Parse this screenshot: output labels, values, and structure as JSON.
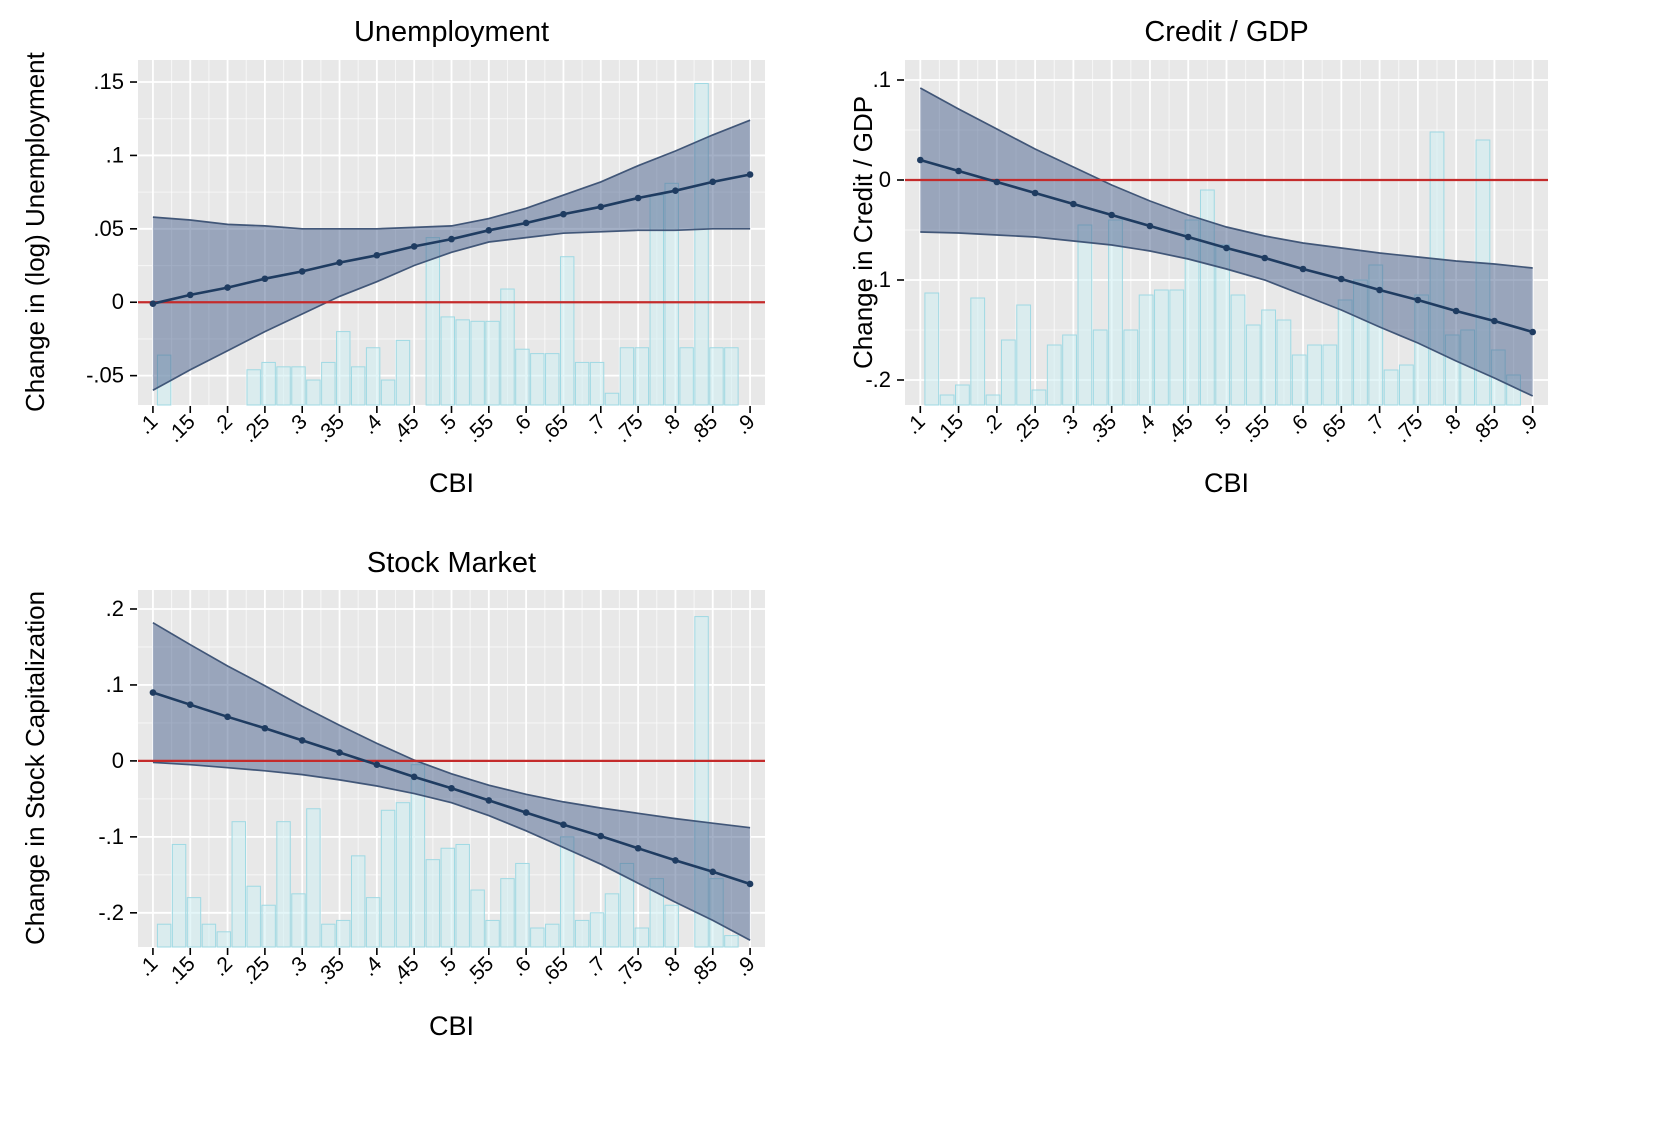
{
  "page": {
    "background": "#ffffff"
  },
  "colors": {
    "panel": "#e8e8e8",
    "grid_major": "#ffffff",
    "grid_minor": "#ffffff",
    "band_fill": "#4a628e",
    "band_edge": "#3a5073",
    "line": "#1f3c61",
    "ref_line": "#c42b2b",
    "hist_fill": "#cdeef2",
    "hist_edge": "#9fd9e3",
    "tick": "#000000",
    "text": "#000000"
  },
  "chart_data": [
    {
      "type": "line",
      "title": "Unemployment",
      "xlabel": "CBI",
      "ylabel": "Change in (log) Unemployment",
      "legend": "none",
      "grid": true,
      "x": [
        0.1,
        0.15,
        0.2,
        0.25,
        0.3,
        0.35,
        0.4,
        0.45,
        0.5,
        0.55,
        0.6,
        0.65,
        0.7,
        0.75,
        0.8,
        0.85,
        0.9
      ],
      "series": [
        {
          "name": "marginal-effect",
          "values": [
            -0.001,
            0.005,
            0.01,
            0.016,
            0.021,
            0.027,
            0.032,
            0.038,
            0.043,
            0.049,
            0.054,
            0.06,
            0.065,
            0.071,
            0.076,
            0.082,
            0.087
          ]
        },
        {
          "name": "ci-upper",
          "values": [
            0.058,
            0.056,
            0.053,
            0.052,
            0.05,
            0.05,
            0.05,
            0.051,
            0.052,
            0.057,
            0.064,
            0.073,
            0.082,
            0.093,
            0.103,
            0.114,
            0.124
          ]
        },
        {
          "name": "ci-lower",
          "values": [
            -0.06,
            -0.046,
            -0.033,
            -0.02,
            -0.008,
            0.004,
            0.014,
            0.025,
            0.034,
            0.041,
            0.044,
            0.047,
            0.048,
            0.049,
            0.049,
            0.05,
            0.05
          ]
        }
      ],
      "ref_line_y": 0,
      "xlim": [
        0.08,
        0.92
      ],
      "ylim": [
        -0.07,
        0.165
      ],
      "x_ticks": [
        0.1,
        0.15,
        0.2,
        0.25,
        0.3,
        0.35,
        0.4,
        0.45,
        0.5,
        0.55,
        0.6,
        0.65,
        0.7,
        0.75,
        0.8,
        0.85,
        0.9
      ],
      "x_tick_labels": [
        ".1",
        ".15",
        ".2",
        ".25",
        ".3",
        ".35",
        ".4",
        ".45",
        ".5",
        ".55",
        ".6",
        ".65",
        ".7",
        ".75",
        ".8",
        ".85",
        ".9"
      ],
      "y_ticks": [
        -0.05,
        0,
        0.05,
        0.1,
        0.15
      ],
      "y_tick_labels": [
        "-.05",
        "0",
        ".05",
        ".1",
        ".15"
      ],
      "histogram": {
        "bar_width": 0.018,
        "base": -0.07,
        "bars": [
          [
            0.115,
            -0.036
          ],
          [
            0.235,
            -0.046
          ],
          [
            0.255,
            -0.041
          ],
          [
            0.275,
            -0.044
          ],
          [
            0.295,
            -0.044
          ],
          [
            0.315,
            -0.053
          ],
          [
            0.335,
            -0.041
          ],
          [
            0.355,
            -0.02
          ],
          [
            0.375,
            -0.044
          ],
          [
            0.395,
            -0.031
          ],
          [
            0.415,
            -0.053
          ],
          [
            0.435,
            -0.026
          ],
          [
            0.475,
            0.044
          ],
          [
            0.495,
            -0.01
          ],
          [
            0.515,
            -0.012
          ],
          [
            0.535,
            -0.013
          ],
          [
            0.555,
            -0.013
          ],
          [
            0.575,
            0.009
          ],
          [
            0.595,
            -0.032
          ],
          [
            0.615,
            -0.035
          ],
          [
            0.635,
            -0.035
          ],
          [
            0.655,
            0.031
          ],
          [
            0.675,
            -0.041
          ],
          [
            0.695,
            -0.041
          ],
          [
            0.715,
            -0.062
          ],
          [
            0.735,
            -0.031
          ],
          [
            0.755,
            -0.031
          ],
          [
            0.775,
            0.073
          ],
          [
            0.795,
            0.081
          ],
          [
            0.815,
            -0.031
          ],
          [
            0.835,
            0.149
          ],
          [
            0.855,
            -0.031
          ],
          [
            0.875,
            -0.031
          ]
        ]
      }
    },
    {
      "type": "line",
      "title": "Credit / GDP",
      "xlabel": "CBI",
      "ylabel": "Change in Credit / GDP",
      "legend": "none",
      "grid": true,
      "x": [
        0.1,
        0.15,
        0.2,
        0.25,
        0.3,
        0.35,
        0.4,
        0.45,
        0.5,
        0.55,
        0.6,
        0.65,
        0.7,
        0.75,
        0.8,
        0.85,
        0.9
      ],
      "series": [
        {
          "name": "marginal-effect",
          "values": [
            0.02,
            0.009,
            -0.002,
            -0.013,
            -0.024,
            -0.035,
            -0.046,
            -0.057,
            -0.068,
            -0.078,
            -0.089,
            -0.099,
            -0.11,
            -0.12,
            -0.131,
            -0.141,
            -0.152
          ]
        },
        {
          "name": "ci-upper",
          "values": [
            0.092,
            0.071,
            0.051,
            0.031,
            0.013,
            -0.005,
            -0.021,
            -0.035,
            -0.047,
            -0.056,
            -0.063,
            -0.068,
            -0.073,
            -0.077,
            -0.081,
            -0.084,
            -0.088
          ]
        },
        {
          "name": "ci-lower",
          "values": [
            -0.052,
            -0.053,
            -0.055,
            -0.057,
            -0.061,
            -0.065,
            -0.071,
            -0.079,
            -0.089,
            -0.1,
            -0.115,
            -0.13,
            -0.147,
            -0.163,
            -0.181,
            -0.198,
            -0.216
          ]
        }
      ],
      "ref_line_y": 0,
      "xlim": [
        0.08,
        0.92
      ],
      "ylim": [
        -0.225,
        0.12
      ],
      "x_ticks": [
        0.1,
        0.15,
        0.2,
        0.25,
        0.3,
        0.35,
        0.4,
        0.45,
        0.5,
        0.55,
        0.6,
        0.65,
        0.7,
        0.75,
        0.8,
        0.85,
        0.9
      ],
      "x_tick_labels": [
        ".1",
        ".15",
        ".2",
        ".25",
        ".3",
        ".35",
        ".4",
        ".45",
        ".5",
        ".55",
        ".6",
        ".65",
        ".7",
        ".75",
        ".8",
        ".85",
        ".9"
      ],
      "y_ticks": [
        -0.2,
        -0.1,
        0,
        0.1
      ],
      "y_tick_labels": [
        "-.2",
        "-.1",
        "0",
        ".1"
      ],
      "histogram": {
        "bar_width": 0.018,
        "base": -0.225,
        "bars": [
          [
            0.115,
            -0.113
          ],
          [
            0.135,
            -0.215
          ],
          [
            0.155,
            -0.205
          ],
          [
            0.175,
            -0.118
          ],
          [
            0.195,
            -0.215
          ],
          [
            0.215,
            -0.16
          ],
          [
            0.235,
            -0.125
          ],
          [
            0.255,
            -0.21
          ],
          [
            0.275,
            -0.165
          ],
          [
            0.295,
            -0.155
          ],
          [
            0.315,
            -0.045
          ],
          [
            0.335,
            -0.15
          ],
          [
            0.355,
            -0.04
          ],
          [
            0.375,
            -0.15
          ],
          [
            0.395,
            -0.115
          ],
          [
            0.415,
            -0.11
          ],
          [
            0.435,
            -0.11
          ],
          [
            0.455,
            -0.04
          ],
          [
            0.475,
            -0.01
          ],
          [
            0.495,
            -0.065
          ],
          [
            0.515,
            -0.115
          ],
          [
            0.535,
            -0.145
          ],
          [
            0.555,
            -0.13
          ],
          [
            0.575,
            -0.14
          ],
          [
            0.595,
            -0.175
          ],
          [
            0.615,
            -0.165
          ],
          [
            0.635,
            -0.165
          ],
          [
            0.655,
            -0.12
          ],
          [
            0.675,
            -0.1
          ],
          [
            0.695,
            -0.085
          ],
          [
            0.715,
            -0.19
          ],
          [
            0.735,
            -0.185
          ],
          [
            0.755,
            -0.115
          ],
          [
            0.775,
            0.048
          ],
          [
            0.795,
            -0.155
          ],
          [
            0.815,
            -0.15
          ],
          [
            0.835,
            0.04
          ],
          [
            0.855,
            -0.17
          ],
          [
            0.875,
            -0.195
          ]
        ]
      }
    },
    {
      "type": "line",
      "title": "Stock Market",
      "xlabel": "CBI",
      "ylabel": "Change in Stock Capitalization",
      "legend": "none",
      "grid": true,
      "x": [
        0.1,
        0.15,
        0.2,
        0.25,
        0.3,
        0.35,
        0.4,
        0.45,
        0.5,
        0.55,
        0.6,
        0.65,
        0.7,
        0.75,
        0.8,
        0.85,
        0.9
      ],
      "series": [
        {
          "name": "marginal-effect",
          "values": [
            0.09,
            0.074,
            0.058,
            0.043,
            0.027,
            0.011,
            -0.005,
            -0.021,
            -0.036,
            -0.052,
            -0.068,
            -0.084,
            -0.099,
            -0.115,
            -0.131,
            -0.146,
            -0.162
          ]
        },
        {
          "name": "ci-upper",
          "values": [
            0.182,
            0.153,
            0.125,
            0.099,
            0.072,
            0.047,
            0.023,
            0.001,
            -0.017,
            -0.032,
            -0.044,
            -0.054,
            -0.062,
            -0.069,
            -0.076,
            -0.082,
            -0.088
          ]
        },
        {
          "name": "ci-lower",
          "values": [
            -0.002,
            -0.005,
            -0.009,
            -0.013,
            -0.018,
            -0.025,
            -0.033,
            -0.043,
            -0.055,
            -0.072,
            -0.092,
            -0.114,
            -0.136,
            -0.161,
            -0.186,
            -0.21,
            -0.236
          ]
        }
      ],
      "ref_line_y": 0,
      "xlim": [
        0.08,
        0.92
      ],
      "ylim": [
        -0.245,
        0.225
      ],
      "x_ticks": [
        0.1,
        0.15,
        0.2,
        0.25,
        0.3,
        0.35,
        0.4,
        0.45,
        0.5,
        0.55,
        0.6,
        0.65,
        0.7,
        0.75,
        0.8,
        0.85,
        0.9
      ],
      "x_tick_labels": [
        ".1",
        ".15",
        ".2",
        ".25",
        ".3",
        ".35",
        ".4",
        ".45",
        ".5",
        ".55",
        ".6",
        ".65",
        ".7",
        ".75",
        ".8",
        ".85",
        ".9"
      ],
      "y_ticks": [
        -0.2,
        -0.1,
        0,
        0.1,
        0.2
      ],
      "y_tick_labels": [
        "-.2",
        "-.1",
        "0",
        ".1",
        ".2"
      ],
      "histogram": {
        "bar_width": 0.018,
        "base": -0.245,
        "bars": [
          [
            0.115,
            -0.215
          ],
          [
            0.135,
            -0.11
          ],
          [
            0.155,
            -0.18
          ],
          [
            0.175,
            -0.215
          ],
          [
            0.195,
            -0.225
          ],
          [
            0.215,
            -0.08
          ],
          [
            0.235,
            -0.165
          ],
          [
            0.255,
            -0.19
          ],
          [
            0.275,
            -0.08
          ],
          [
            0.295,
            -0.175
          ],
          [
            0.315,
            -0.063
          ],
          [
            0.335,
            -0.215
          ],
          [
            0.355,
            -0.21
          ],
          [
            0.375,
            -0.125
          ],
          [
            0.395,
            -0.18
          ],
          [
            0.415,
            -0.065
          ],
          [
            0.435,
            -0.055
          ],
          [
            0.455,
            -0.005
          ],
          [
            0.475,
            -0.13
          ],
          [
            0.495,
            -0.115
          ],
          [
            0.515,
            -0.11
          ],
          [
            0.535,
            -0.17
          ],
          [
            0.555,
            -0.21
          ],
          [
            0.575,
            -0.155
          ],
          [
            0.595,
            -0.135
          ],
          [
            0.615,
            -0.22
          ],
          [
            0.635,
            -0.215
          ],
          [
            0.655,
            -0.1
          ],
          [
            0.675,
            -0.21
          ],
          [
            0.695,
            -0.2
          ],
          [
            0.715,
            -0.175
          ],
          [
            0.735,
            -0.135
          ],
          [
            0.755,
            -0.22
          ],
          [
            0.775,
            -0.155
          ],
          [
            0.795,
            -0.19
          ],
          [
            0.835,
            0.19
          ],
          [
            0.855,
            -0.155
          ],
          [
            0.875,
            -0.23
          ]
        ]
      }
    }
  ]
}
